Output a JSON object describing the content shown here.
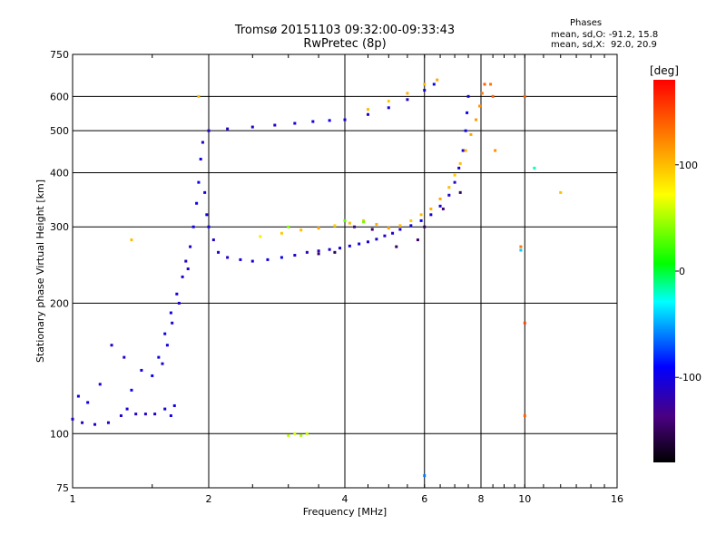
{
  "header": {
    "title_line1": "Tromsø 20151103 09:32:00-09:33:43",
    "title_line2": "RwPretec (8p)"
  },
  "stats": {
    "heading": "Phases",
    "o_mode": "mean, sd,O: -91.2, 15.8",
    "x_mode": "mean, sd,X:  92.0, 20.9"
  },
  "chart_data": {
    "type": "scatter",
    "xlabel": "Frequency [MHz]",
    "ylabel": "Stationary phase Virtual Height [km]",
    "xscale": "log",
    "yscale": "log",
    "xlim": [
      1,
      16
    ],
    "ylim": [
      75,
      750
    ],
    "x_ticks": [
      1,
      2,
      4,
      6,
      8,
      10,
      16
    ],
    "y_ticks": [
      75,
      100,
      200,
      300,
      400,
      500,
      600,
      750
    ],
    "grid_x": [
      2,
      4,
      6,
      8,
      10
    ],
    "grid_y": [
      100,
      200,
      300,
      400,
      500,
      600
    ],
    "colorbar": {
      "label": "[deg]",
      "range": [
        -180,
        180
      ],
      "ticks": [
        100,
        0,
        -100
      ]
    },
    "series": [
      {
        "points": [
          [
            1.0,
            108,
            -110
          ],
          [
            1.05,
            106,
            -115
          ],
          [
            1.12,
            105,
            -112
          ],
          [
            1.2,
            106,
            -108
          ],
          [
            1.28,
            110,
            -110
          ],
          [
            1.32,
            114,
            -105
          ],
          [
            1.38,
            111,
            -112
          ],
          [
            1.45,
            111,
            -110
          ],
          [
            1.52,
            111,
            -108
          ],
          [
            1.6,
            114,
            -104
          ],
          [
            1.65,
            110,
            -100
          ],
          [
            1.68,
            116,
            -98
          ],
          [
            1.03,
            122,
            -102
          ],
          [
            1.08,
            118,
            -100
          ],
          [
            1.15,
            130,
            -106
          ],
          [
            1.22,
            160,
            -110
          ],
          [
            1.3,
            150,
            -108
          ],
          [
            1.35,
            126,
            -100
          ],
          [
            1.42,
            140,
            -104
          ],
          [
            1.5,
            136,
            -95
          ],
          [
            1.55,
            150,
            -100
          ],
          [
            1.6,
            170,
            -98
          ],
          [
            1.65,
            190,
            -100
          ],
          [
            1.7,
            210,
            -104
          ],
          [
            1.75,
            230,
            -108
          ],
          [
            1.78,
            250,
            -110
          ],
          [
            1.82,
            270,
            -112
          ],
          [
            1.85,
            300,
            -100
          ],
          [
            1.88,
            340,
            -96
          ],
          [
            1.9,
            380,
            -95
          ],
          [
            1.92,
            430,
            -100
          ],
          [
            1.94,
            470,
            -110
          ],
          [
            1.96,
            360,
            -104
          ],
          [
            1.98,
            320,
            -98
          ],
          [
            2.0,
            300,
            -100
          ],
          [
            1.8,
            240,
            -106
          ],
          [
            1.72,
            200,
            -110
          ],
          [
            1.66,
            180,
            -108
          ],
          [
            1.62,
            160,
            -100
          ],
          [
            1.58,
            145,
            -104
          ],
          [
            2.05,
            280,
            -112
          ],
          [
            2.1,
            262,
            -110
          ],
          [
            2.2,
            255,
            -108
          ],
          [
            2.35,
            252,
            -105
          ],
          [
            2.5,
            250,
            -104
          ],
          [
            2.7,
            252,
            -100
          ],
          [
            2.9,
            255,
            -98
          ],
          [
            3.1,
            258,
            -110
          ],
          [
            3.3,
            262,
            -115
          ],
          [
            3.5,
            264,
            -112
          ],
          [
            3.7,
            266,
            -108
          ],
          [
            3.9,
            268,
            -104
          ],
          [
            4.1,
            271,
            -100
          ],
          [
            4.3,
            274,
            -102
          ],
          [
            4.5,
            277,
            -105
          ],
          [
            4.7,
            281,
            -110
          ],
          [
            4.9,
            286,
            -112
          ],
          [
            5.1,
            290,
            -108
          ],
          [
            5.3,
            296,
            -104
          ],
          [
            5.6,
            302,
            -100
          ],
          [
            5.9,
            310,
            -98
          ],
          [
            6.2,
            320,
            -102
          ],
          [
            6.5,
            335,
            -106
          ],
          [
            6.8,
            355,
            -110
          ],
          [
            7.0,
            380,
            -112
          ],
          [
            7.15,
            410,
            -108
          ],
          [
            7.3,
            450,
            -104
          ],
          [
            7.4,
            500,
            -100
          ],
          [
            7.45,
            550,
            -98
          ],
          [
            7.5,
            600,
            -104
          ],
          [
            2.0,
            500,
            -110
          ],
          [
            2.2,
            505,
            -112
          ],
          [
            2.5,
            510,
            -110
          ],
          [
            2.8,
            515,
            -108
          ],
          [
            3.1,
            520,
            -104
          ],
          [
            3.4,
            525,
            -100
          ],
          [
            3.7,
            528,
            -98
          ],
          [
            4.0,
            530,
            -102
          ],
          [
            4.5,
            545,
            -105
          ],
          [
            5.0,
            565,
            -108
          ],
          [
            5.5,
            590,
            -110
          ],
          [
            6.0,
            620,
            -106
          ],
          [
            6.3,
            640,
            -102
          ]
        ]
      },
      {
        "points": [
          [
            2.6,
            285,
            80
          ],
          [
            2.9,
            290,
            95
          ],
          [
            3.2,
            295,
            100
          ],
          [
            3.5,
            298,
            110
          ],
          [
            3.8,
            302,
            90
          ],
          [
            4.1,
            306,
            100
          ],
          [
            4.4,
            310,
            95
          ],
          [
            4.7,
            304,
            105
          ],
          [
            5.0,
            298,
            110
          ],
          [
            5.3,
            302,
            100
          ],
          [
            5.6,
            310,
            95
          ],
          [
            5.9,
            320,
            100
          ],
          [
            6.2,
            330,
            105
          ],
          [
            6.5,
            348,
            110
          ],
          [
            6.8,
            370,
            100
          ],
          [
            7.0,
            395,
            95
          ],
          [
            7.2,
            420,
            100
          ],
          [
            7.4,
            450,
            105
          ],
          [
            7.6,
            490,
            110
          ],
          [
            7.8,
            530,
            115
          ],
          [
            7.95,
            570,
            120
          ],
          [
            8.05,
            610,
            130
          ],
          [
            8.15,
            640,
            140
          ],
          [
            4.5,
            560,
            100
          ],
          [
            5.0,
            585,
            95
          ],
          [
            5.5,
            610,
            105
          ],
          [
            6.0,
            640,
            100
          ],
          [
            6.4,
            655,
            110
          ],
          [
            3.0,
            99,
            55
          ],
          [
            3.1,
            100,
            60
          ],
          [
            3.2,
            99,
            50
          ],
          [
            3.3,
            100,
            58
          ],
          [
            1.9,
            600,
            100
          ],
          [
            1.35,
            280,
            100
          ],
          [
            8.4,
            640,
            130
          ],
          [
            8.5,
            600,
            140
          ],
          [
            8.6,
            450,
            120
          ],
          [
            9.8,
            270,
            130
          ],
          [
            10.0,
            600,
            140
          ],
          [
            10.0,
            180,
            150
          ],
          [
            12.0,
            360,
            100
          ],
          [
            10.0,
            110,
            140
          ]
        ]
      },
      {
        "points": [
          [
            3.5,
            260,
            -150
          ],
          [
            3.8,
            262,
            -155
          ],
          [
            4.2,
            300,
            -140
          ],
          [
            4.6,
            296,
            -145
          ],
          [
            5.2,
            270,
            -150
          ],
          [
            5.8,
            280,
            -145
          ],
          [
            6.0,
            300,
            -150
          ],
          [
            6.6,
            330,
            -140
          ],
          [
            7.2,
            360,
            -150
          ]
        ]
      },
      {
        "points": [
          [
            3.0,
            300,
            40
          ],
          [
            4.0,
            310,
            30
          ],
          [
            4.4,
            308,
            35
          ],
          [
            10.5,
            410,
            -20
          ],
          [
            9.8,
            265,
            -40
          ],
          [
            6.0,
            80,
            -60
          ]
        ]
      }
    ]
  }
}
